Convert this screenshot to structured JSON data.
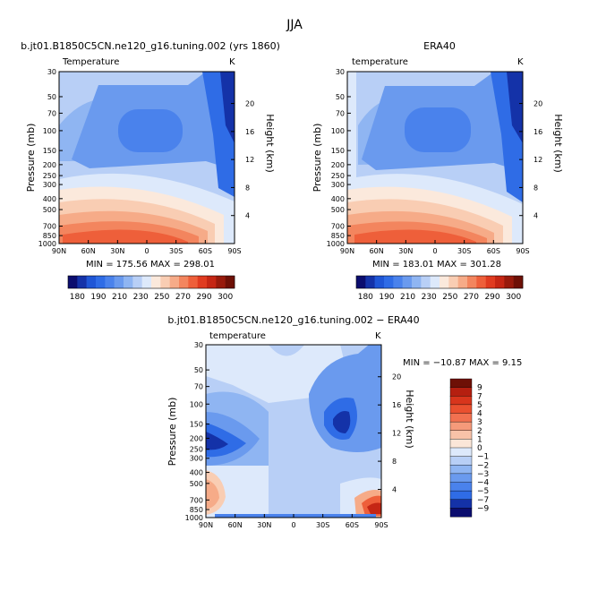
{
  "title": "JJA",
  "chart_data": [
    {
      "type": "heatmap",
      "title": "b.jt01.B1850C5CN.ne120_g16.tuning.002 (yrs 1860)",
      "subtitle": "Temperature",
      "units": "K",
      "ylabel": "Pressure (mb)",
      "ylabel_right": "Height (km)",
      "x_ticks": [
        "90N",
        "60N",
        "30N",
        "0",
        "30S",
        "60S",
        "90S"
      ],
      "y_ticks": [
        "30",
        "50",
        "70",
        "100",
        "150",
        "200",
        "250",
        "300",
        "400",
        "500",
        "700",
        "850",
        "1000"
      ],
      "height_ticks": [
        "20",
        "16",
        "12",
        "8",
        "4"
      ],
      "stats": "MIN = 175.56   MAX = 298.01",
      "min": 175.56,
      "max": 298.01
    },
    {
      "type": "heatmap",
      "title": "ERA40",
      "subtitle": "temperature",
      "units": "K",
      "ylabel": "Pressure (mb)",
      "ylabel_right": "Height (km)",
      "x_ticks": [
        "90N",
        "60N",
        "30N",
        "0",
        "30S",
        "60S",
        "90S"
      ],
      "y_ticks": [
        "30",
        "50",
        "70",
        "100",
        "150",
        "200",
        "250",
        "300",
        "400",
        "500",
        "700",
        "850",
        "1000"
      ],
      "height_ticks": [
        "20",
        "16",
        "12",
        "8",
        "4"
      ],
      "stats": "MIN = 183.01   MAX = 301.28",
      "min": 183.01,
      "max": 301.28
    },
    {
      "type": "heatmap",
      "title": "b.jt01.B1850C5CN.ne120_g16.tuning.002 − ERA40",
      "subtitle": "temperature",
      "units": "K",
      "ylabel": "Pressure (mb)",
      "ylabel_right": "Height (km)",
      "x_ticks": [
        "90N",
        "60N",
        "30N",
        "0",
        "30S",
        "60S",
        "90S"
      ],
      "y_ticks": [
        "30",
        "50",
        "70",
        "100",
        "150",
        "200",
        "250",
        "300",
        "400",
        "500",
        "700",
        "850",
        "1000"
      ],
      "height_ticks": [
        "20",
        "16",
        "12",
        "8",
        "4"
      ],
      "stats": "MIN = −10.87   MAX =   9.15",
      "min": -10.87,
      "max": 9.15
    }
  ],
  "colorbar_top": {
    "labels": [
      "180",
      "190",
      "210",
      "230",
      "250",
      "270",
      "290",
      "300"
    ],
    "colors": [
      "#0b0d6e",
      "#1432a8",
      "#1f56d6",
      "#2f6ce6",
      "#4a82ec",
      "#6a9aee",
      "#8fb5f2",
      "#b8cff6",
      "#dde9fb",
      "#fbe9dc",
      "#f9cdb3",
      "#f6ab88",
      "#f3855e",
      "#ee5f3a",
      "#e03b20",
      "#c52614",
      "#981a0c",
      "#6e1006"
    ]
  },
  "colorbar_diff": {
    "labels": [
      "9",
      "7",
      "5",
      "4",
      "3",
      "2",
      "1",
      "0",
      "−1",
      "−2",
      "−3",
      "−4",
      "−5",
      "−7",
      "−9"
    ],
    "colors": [
      "#6e1006",
      "#b51f10",
      "#d8351c",
      "#ea502f",
      "#f27150",
      "#f59a7a",
      "#f8c2a8",
      "#fbe6d8",
      "#dde9fb",
      "#b8cff6",
      "#8fb5f2",
      "#6a9aee",
      "#4a82ec",
      "#2f6ce6",
      "#1432a8",
      "#0b0d6e"
    ]
  }
}
